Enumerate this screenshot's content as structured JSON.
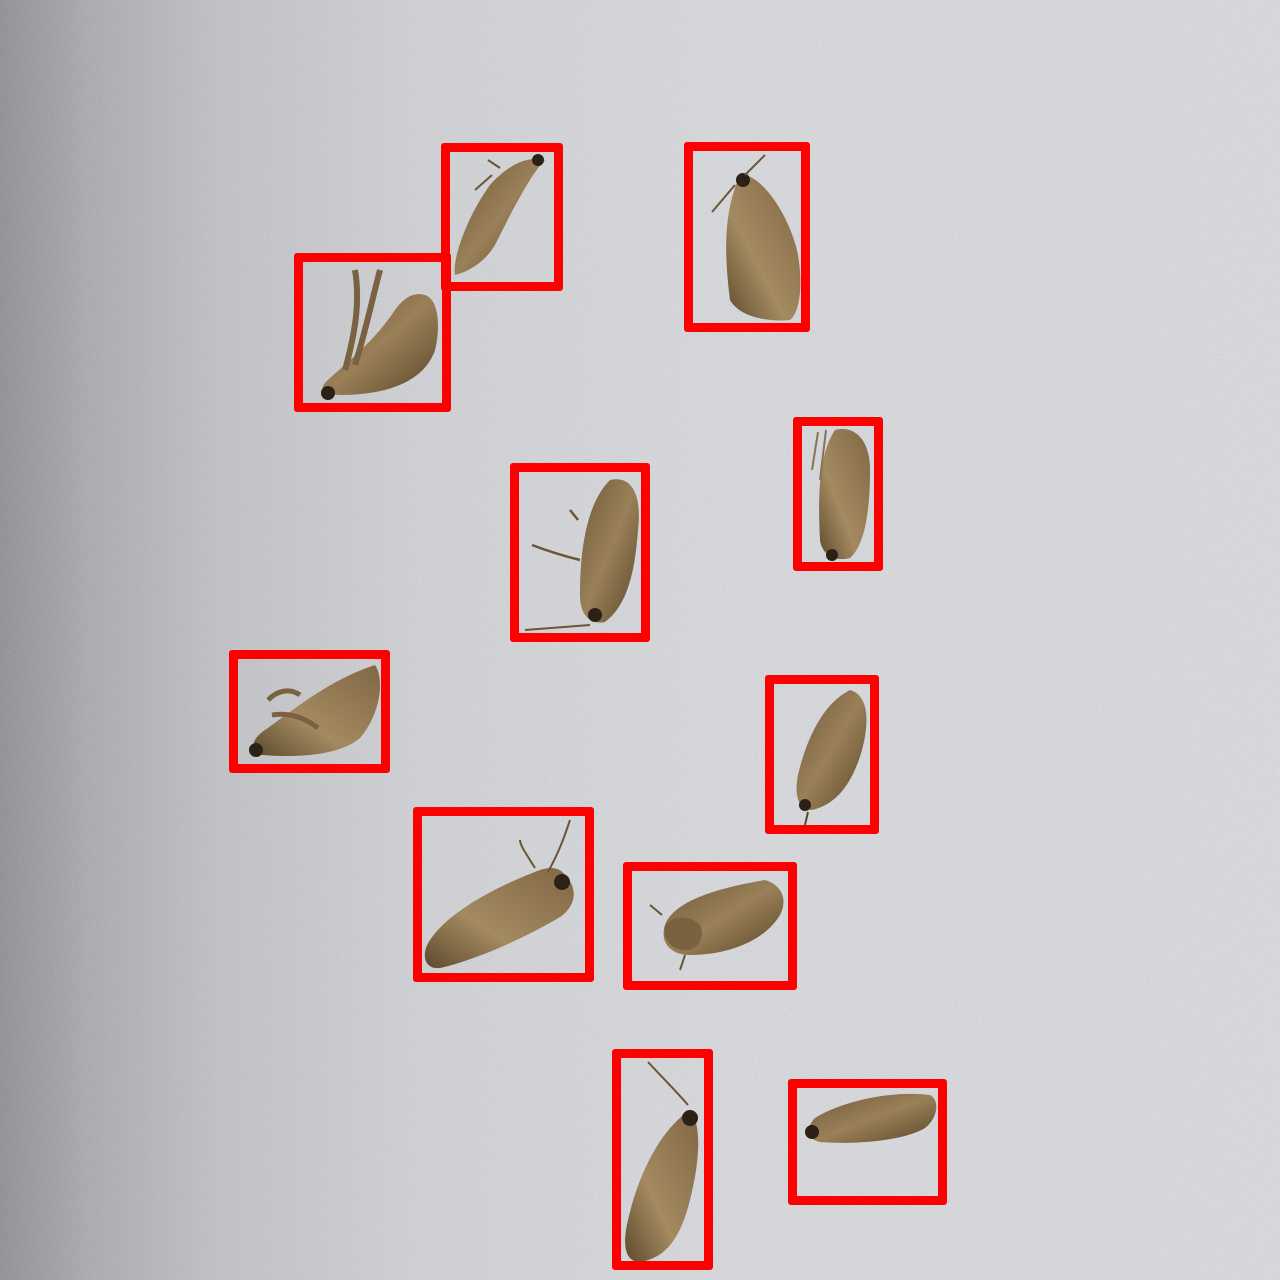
{
  "image": {
    "subject": "moth-specimens",
    "background_color": "#dcdde2",
    "annotation_color": "#ff0000",
    "detection_count": 11
  },
  "detections": [
    {
      "label": "moth"
    },
    {
      "label": "moth"
    },
    {
      "label": "moth"
    },
    {
      "label": "moth"
    },
    {
      "label": "moth"
    },
    {
      "label": "moth"
    },
    {
      "label": "moth"
    },
    {
      "label": "moth"
    },
    {
      "label": "moth"
    },
    {
      "label": "moth"
    },
    {
      "label": "moth"
    }
  ]
}
